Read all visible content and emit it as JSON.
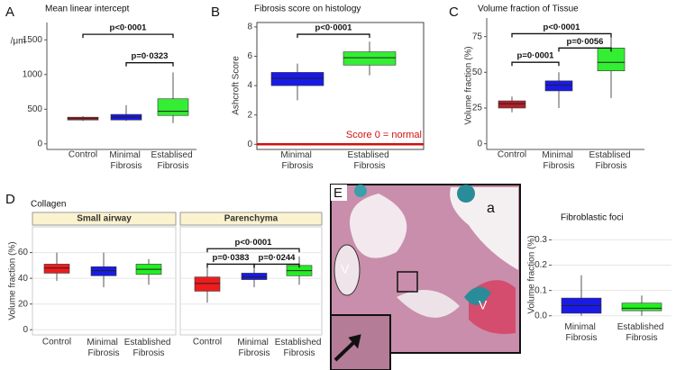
{
  "panel_labels": [
    "A",
    "B",
    "C",
    "D",
    "E"
  ],
  "image_labels": [
    "a",
    "V",
    "V"
  ],
  "chart_data": [
    {
      "type": "box",
      "title": "Mean linear intercept",
      "y_label": "/μm",
      "categories": [
        "Control",
        "Minimal Fibrosis",
        "Establised Fibrosis"
      ],
      "colors": [
        "#b5202a",
        "#1a1ae6",
        "#33ee33"
      ],
      "ylim": [
        -80,
        1750
      ],
      "yticks": [
        0,
        500,
        1000,
        1500
      ],
      "stats": [
        {
          "min": 330,
          "q1": 345,
          "median": 365,
          "q3": 385,
          "max": 400
        },
        {
          "min": 330,
          "q1": 345,
          "median": 385,
          "q3": 425,
          "max": 560
        },
        {
          "min": 300,
          "q1": 410,
          "median": 470,
          "q3": 650,
          "max": 1030
        }
      ],
      "annotations": [
        {
          "text": "p<0·0001",
          "from": "Control",
          "to": "Establised Fibrosis",
          "y": 1580
        },
        {
          "text": "p=0·0323",
          "from": "Minimal Fibrosis",
          "to": "Establised Fibrosis",
          "y": 1170
        }
      ]
    },
    {
      "type": "box",
      "title": "Fibrosis score on histology",
      "y_label": "Ashcroft Score",
      "categories": [
        "Minimal Fibrosis",
        "Establised Fibrosis"
      ],
      "colors": [
        "#1a1ae6",
        "#33ee33"
      ],
      "ylim": [
        -0.35,
        8.3
      ],
      "yticks": [
        0,
        2,
        4,
        6,
        8
      ],
      "frame": true,
      "stats": [
        {
          "min": 3,
          "q1": 4,
          "median": 4.5,
          "q3": 4.9,
          "max": 5.5
        },
        {
          "min": 4.7,
          "q1": 5.4,
          "median": 5.9,
          "q3": 6.3,
          "max": 7
        }
      ],
      "annotations": [
        {
          "text": "p<0·0001",
          "from": "Minimal Fibrosis",
          "to": "Establised Fibrosis",
          "y": 7.5
        }
      ],
      "hline": {
        "value": 0,
        "color": "#d01010",
        "label": "Score 0 = normal"
      }
    },
    {
      "type": "box",
      "title": "Volume fraction of Tissue",
      "y_label": "Volume fraction (%)",
      "categories": [
        "Control",
        "Minimal Fibrosis",
        "Establised Fibrosis"
      ],
      "colors": [
        "#b5202a",
        "#1a1ae6",
        "#33ee33"
      ],
      "ylim": [
        -4,
        88
      ],
      "yticks": [
        0,
        25,
        50,
        75
      ],
      "stats": [
        {
          "min": 22,
          "q1": 25,
          "median": 28,
          "q3": 30,
          "max": 33
        },
        {
          "min": 25,
          "q1": 37,
          "median": 41,
          "q3": 44,
          "max": 50
        },
        {
          "min": 32,
          "q1": 51,
          "median": 57,
          "q3": 67,
          "max": 77
        }
      ],
      "annotations": [
        {
          "text": "p<0·0001",
          "from": "Control",
          "to": "Establised Fibrosis",
          "y": 77
        },
        {
          "text": "p=0·0001",
          "from": "Control",
          "to": "Minimal Fibrosis",
          "y": 57
        },
        {
          "text": "p=0·0056",
          "from": "Minimal Fibrosis",
          "to": "Establised Fibrosis",
          "y": 67
        }
      ]
    },
    {
      "type": "box",
      "title": "Collagen",
      "y_label": "Volume fraction (%)",
      "categories": [
        "Control",
        "Minimal Fibrosis",
        "Established Fibrosis"
      ],
      "colors": [
        "#ee1c1c",
        "#1a1ae6",
        "#22ee22"
      ],
      "ylim": [
        -4,
        80
      ],
      "yticks": [
        0,
        20,
        40,
        60
      ],
      "grid": true,
      "facets": [
        {
          "name": "Small airway",
          "stats": [
            {
              "min": 38,
              "q1": 44,
              "median": 48,
              "q3": 51,
              "max": 60
            },
            {
              "min": 33,
              "q1": 42,
              "median": 46,
              "q3": 49,
              "max": 60
            },
            {
              "min": 35,
              "q1": 43,
              "median": 47,
              "q3": 51,
              "max": 55
            }
          ],
          "annotations": []
        },
        {
          "name": "Parenchyma",
          "stats": [
            {
              "min": 21,
              "q1": 30,
              "median": 36,
              "q3": 41,
              "max": 52
            },
            {
              "min": 33,
              "q1": 39,
              "median": 41,
              "q3": 44,
              "max": 50
            },
            {
              "min": 35,
              "q1": 42,
              "median": 46,
              "q3": 50,
              "max": 57
            }
          ],
          "annotations": [
            {
              "text": "p<0·0001",
              "from": "Control",
              "to": "Established Fibrosis",
              "y": 63
            },
            {
              "text": "p=0·0383",
              "from": "Control",
              "to": "Minimal Fibrosis",
              "y": 51
            },
            {
              "text": "p=0·0244",
              "from": "Minimal Fibrosis",
              "to": "Established Fibrosis",
              "y": 51
            }
          ]
        }
      ]
    },
    {
      "type": "box",
      "title": "Fibroblastic foci",
      "y_label": "Volume fraction (%)",
      "categories": [
        "Minimal Fibrosis",
        "Established Fibrosis"
      ],
      "colors": [
        "#1a1ae6",
        "#22ee22"
      ],
      "ylim": [
        -0.015,
        0.33
      ],
      "yticks": [
        {
          "value": 0,
          "label": "0.0"
        },
        0.1,
        0.2,
        0.3
      ],
      "grid": true,
      "stats": [
        {
          "min": 0,
          "q1": 0.01,
          "median": 0.04,
          "q3": 0.07,
          "max": 0.16
        },
        {
          "min": 0,
          "q1": 0.02,
          "median": 0.03,
          "q3": 0.05,
          "max": 0.08
        }
      ],
      "annotations": []
    }
  ]
}
